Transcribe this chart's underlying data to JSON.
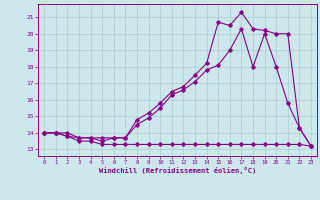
{
  "xlabel": "Windchill (Refroidissement éolien,°C)",
  "background_color": "#cce8ec",
  "line_color": "#880088",
  "grid_color": "#aaccd0",
  "x_ticks": [
    0,
    1,
    2,
    3,
    4,
    5,
    6,
    7,
    8,
    9,
    10,
    11,
    12,
    13,
    14,
    15,
    16,
    17,
    18,
    19,
    20,
    21,
    22,
    23
  ],
  "y_ticks": [
    13,
    14,
    15,
    16,
    17,
    18,
    19,
    20,
    21
  ],
  "xlim": [
    -0.5,
    23.5
  ],
  "ylim": [
    12.6,
    21.8
  ],
  "line1_x": [
    0,
    1,
    2,
    3,
    4,
    5,
    6,
    7,
    8,
    9,
    10,
    11,
    12,
    13,
    14,
    15,
    16,
    17,
    18,
    19,
    20,
    21,
    22,
    23
  ],
  "line1_y": [
    14.0,
    14.0,
    13.8,
    13.5,
    13.5,
    13.3,
    13.3,
    13.3,
    13.3,
    13.3,
    13.3,
    13.3,
    13.3,
    13.3,
    13.3,
    13.3,
    13.3,
    13.3,
    13.3,
    13.3,
    13.3,
    13.3,
    13.3,
    13.2
  ],
  "line2_x": [
    0,
    1,
    2,
    3,
    4,
    5,
    6,
    7,
    8,
    9,
    10,
    11,
    12,
    13,
    14,
    15,
    16,
    17,
    18,
    19,
    20,
    21,
    22,
    23
  ],
  "line2_y": [
    14.0,
    14.0,
    14.0,
    13.7,
    13.7,
    13.7,
    13.7,
    13.7,
    14.5,
    14.9,
    15.5,
    16.3,
    16.6,
    17.1,
    17.8,
    18.1,
    19.0,
    20.3,
    18.0,
    20.0,
    18.0,
    15.8,
    14.3,
    13.2
  ],
  "line3_x": [
    0,
    1,
    2,
    3,
    4,
    5,
    6,
    7,
    8,
    9,
    10,
    11,
    12,
    13,
    14,
    15,
    16,
    17,
    18,
    19,
    20,
    21,
    22,
    23
  ],
  "line3_y": [
    14.0,
    14.0,
    13.8,
    13.7,
    13.7,
    13.5,
    13.7,
    13.7,
    14.8,
    15.2,
    15.8,
    16.5,
    16.8,
    17.5,
    18.2,
    20.7,
    20.5,
    21.3,
    20.3,
    20.2,
    20.0,
    20.0,
    14.3,
    13.2
  ]
}
